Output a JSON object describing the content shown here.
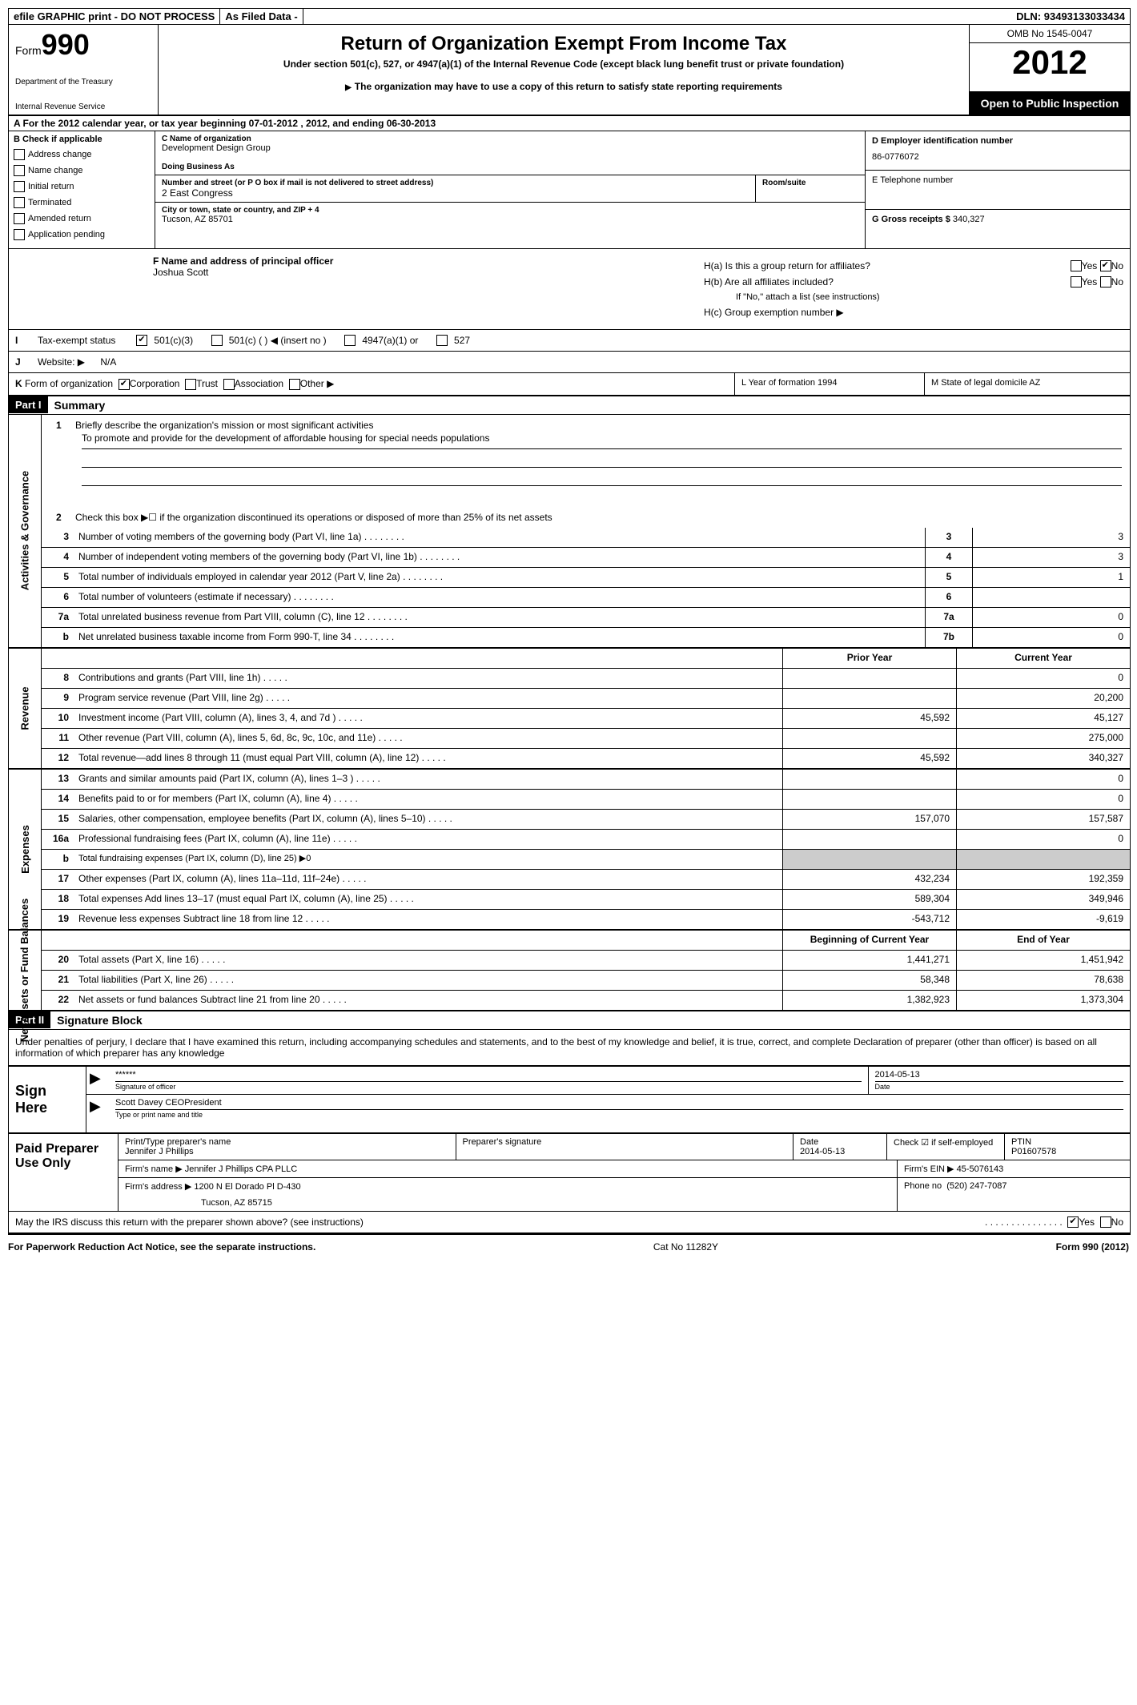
{
  "topbar": {
    "efile": "efile GRAPHIC print - DO NOT PROCESS",
    "asfiled": "As Filed Data -",
    "dln_label": "DLN:",
    "dln": "93493133033434"
  },
  "header": {
    "form_word": "Form",
    "form_number": "990",
    "dept1": "Department of the Treasury",
    "dept2": "Internal Revenue Service",
    "title": "Return of Organization Exempt From Income Tax",
    "subtitle": "Under section 501(c), 527, or 4947(a)(1) of the Internal Revenue Code (except black lung benefit trust or private foundation)",
    "note": "The organization may have to use a copy of this return to satisfy state reporting requirements",
    "omb": "OMB No 1545-0047",
    "year": "2012",
    "open": "Open to Public Inspection"
  },
  "sectionA": "A For the 2012 calendar year, or tax year beginning 07-01-2012    , 2012, and ending 06-30-2013",
  "colB": {
    "label": "B Check if applicable",
    "items": [
      "Address change",
      "Name change",
      "Initial return",
      "Terminated",
      "Amended return",
      "Application pending"
    ]
  },
  "colC": {
    "name_label": "C Name of organization",
    "name": "Development Design Group",
    "dba_label": "Doing Business As",
    "dba": "",
    "street_label": "Number and street (or P O  box if mail is not delivered to street address)",
    "room_label": "Room/suite",
    "street": "2 East Congress",
    "city_label": "City or town, state or country, and ZIP + 4",
    "city": "Tucson, AZ  85701"
  },
  "colD": {
    "ein_label": "D Employer identification number",
    "ein": "86-0776072",
    "phone_label": "E Telephone number",
    "phone": "",
    "gross_label": "G Gross receipts $",
    "gross": "340,327"
  },
  "fgh": {
    "f_label": "F   Name and address of principal officer",
    "f_name": "Joshua Scott",
    "ha": "H(a)  Is this a group return for affiliates?",
    "hb": "H(b)  Are all affiliates included?",
    "hb_note": "If \"No,\" attach a list  (see instructions)",
    "hc": "H(c)   Group exemption number ▶",
    "yes": "Yes",
    "no": "No"
  },
  "rowI": {
    "label": "I",
    "text": "Tax-exempt status",
    "opt1": "501(c)(3)",
    "opt2": "501(c) (   ) ◀ (insert no )",
    "opt3": "4947(a)(1) or",
    "opt4": "527"
  },
  "rowJ": {
    "label": "J",
    "text": "Website: ▶",
    "value": "N/A"
  },
  "rowK": {
    "label": "K",
    "text": "Form of organization",
    "opts": [
      "Corporation",
      "Trust",
      "Association",
      "Other ▶"
    ],
    "l_label": "L Year of formation  1994",
    "m_label": "M State of legal domicile  AZ"
  },
  "part1": {
    "header": "Part I",
    "title": "Summary"
  },
  "mission": {
    "q1": "Briefly describe the organization's mission or most significant activities",
    "q1_ans": "To promote and provide for the development of affordable housing for special needs populations",
    "q2": "Check this box ▶☐ if the organization discontinued its operations or disposed of more than 25% of its net assets"
  },
  "gov_lines": [
    {
      "n": "3",
      "d": "Number of voting members of the governing body (Part VI, line 1a)",
      "b": "3",
      "v": "3"
    },
    {
      "n": "4",
      "d": "Number of independent voting members of the governing body (Part VI, line 1b)",
      "b": "4",
      "v": "3"
    },
    {
      "n": "5",
      "d": "Total number of individuals employed in calendar year 2012 (Part V, line 2a)",
      "b": "5",
      "v": "1"
    },
    {
      "n": "6",
      "d": "Total number of volunteers (estimate if necessary)",
      "b": "6",
      "v": ""
    },
    {
      "n": "7a",
      "d": "Total unrelated business revenue from Part VIII, column (C), line 12",
      "b": "7a",
      "v": "0"
    },
    {
      "n": "b",
      "d": "Net unrelated business taxable income from Form 990-T, line 34",
      "b": "7b",
      "v": "0"
    }
  ],
  "col_headers": {
    "prior": "Prior Year",
    "current": "Current Year"
  },
  "revenue_lines": [
    {
      "n": "8",
      "d": "Contributions and grants (Part VIII, line 1h)",
      "p": "",
      "c": "0"
    },
    {
      "n": "9",
      "d": "Program service revenue (Part VIII, line 2g)",
      "p": "",
      "c": "20,200"
    },
    {
      "n": "10",
      "d": "Investment income (Part VIII, column (A), lines 3, 4, and 7d )",
      "p": "45,592",
      "c": "45,127"
    },
    {
      "n": "11",
      "d": "Other revenue (Part VIII, column (A), lines 5, 6d, 8c, 9c, 10c, and 11e)",
      "p": "",
      "c": "275,000"
    },
    {
      "n": "12",
      "d": "Total revenue—add lines 8 through 11 (must equal Part VIII, column (A), line 12)",
      "p": "45,592",
      "c": "340,327"
    }
  ],
  "expense_lines": [
    {
      "n": "13",
      "d": "Grants and similar amounts paid (Part IX, column (A), lines 1–3 )",
      "p": "",
      "c": "0"
    },
    {
      "n": "14",
      "d": "Benefits paid to or for members (Part IX, column (A), line 4)",
      "p": "",
      "c": "0"
    },
    {
      "n": "15",
      "d": "Salaries, other compensation, employee benefits (Part IX, column (A), lines 5–10)",
      "p": "157,070",
      "c": "157,587"
    },
    {
      "n": "16a",
      "d": "Professional fundraising fees (Part IX, column (A), line 11e)",
      "p": "",
      "c": "0"
    },
    {
      "n": "b",
      "d": "Total fundraising expenses (Part IX, column (D), line 25) ▶0",
      "p": "—",
      "c": "—"
    },
    {
      "n": "17",
      "d": "Other expenses (Part IX, column (A), lines 11a–11d, 11f–24e)",
      "p": "432,234",
      "c": "192,359"
    },
    {
      "n": "18",
      "d": "Total expenses  Add lines 13–17 (must equal Part IX, column (A), line 25)",
      "p": "589,304",
      "c": "349,946"
    },
    {
      "n": "19",
      "d": "Revenue less expenses  Subtract line 18 from line 12",
      "p": "-543,712",
      "c": "-9,619"
    }
  ],
  "na_headers": {
    "begin": "Beginning of Current Year",
    "end": "End of Year"
  },
  "na_lines": [
    {
      "n": "20",
      "d": "Total assets (Part X, line 16)",
      "p": "1,441,271",
      "c": "1,451,942"
    },
    {
      "n": "21",
      "d": "Total liabilities (Part X, line 26)",
      "p": "58,348",
      "c": "78,638"
    },
    {
      "n": "22",
      "d": "Net assets or fund balances  Subtract line 21 from line 20",
      "p": "1,382,923",
      "c": "1,373,304"
    }
  ],
  "side_labels": {
    "gov": "Activities & Governance",
    "rev": "Revenue",
    "exp": "Expenses",
    "na": "Net Assets or Fund Balances"
  },
  "part2": {
    "header": "Part II",
    "title": "Signature Block"
  },
  "perjury": "Under penalties of perjury, I declare that I have examined this return, including accompanying schedules and statements, and to the best of my knowledge and belief, it is true, correct, and complete  Declaration of preparer (other than officer) is based on all information of which preparer has any knowledge",
  "sign": {
    "label": "Sign Here",
    "sig_val": "******",
    "sig_lbl": "Signature of officer",
    "date_val": "2014-05-13",
    "date_lbl": "Date",
    "name_val": "Scott Davey CEOPresident",
    "name_lbl": "Type or print name and title"
  },
  "prep": {
    "label": "Paid Preparer Use Only",
    "name_lbl": "Print/Type preparer's name",
    "name": "Jennifer J Phillips",
    "sig_lbl": "Preparer's signature",
    "date_lbl": "Date",
    "date": "2014-05-13",
    "check_lbl": "Check ☑ if self-employed",
    "ptin_lbl": "PTIN",
    "ptin": "P01607578",
    "firm_name_lbl": "Firm's name    ▶",
    "firm_name": "Jennifer J Phillips CPA PLLC",
    "firm_ein_lbl": "Firm's EIN ▶",
    "firm_ein": "45-5076143",
    "firm_addr_lbl": "Firm's address ▶",
    "firm_addr": "1200 N El Dorado Pl D-430",
    "firm_city": "Tucson, AZ  85715",
    "phone_lbl": "Phone no",
    "phone": "(520) 247-7087"
  },
  "discuss": {
    "text": "May the IRS discuss this return with the preparer shown above? (see instructions)",
    "yes": "Yes",
    "no": "No"
  },
  "footer": {
    "left": "For Paperwork Reduction Act Notice, see the separate instructions.",
    "mid": "Cat No 11282Y",
    "right": "Form 990 (2012)"
  }
}
